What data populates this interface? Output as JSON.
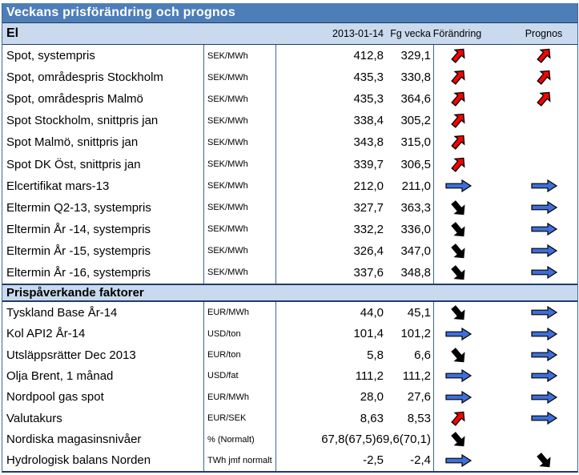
{
  "title": "Veckans prisförändring och prognos",
  "columns": {
    "date": "2013-01-14",
    "prev_week": "Fg vecka",
    "change": "Förändring",
    "forecast": "Prognos"
  },
  "icons": {
    "up": "red-diagonal-up-arrow",
    "down": "black-diagonal-down-arrow",
    "flat": "blue-right-arrow"
  },
  "colors": {
    "title_bar": "#4E7EB8",
    "section_band": "#C9DAEE",
    "divider": "#3A66A6",
    "border_dark": "#1F3C68",
    "arrow_up": "#FF0000",
    "arrow_down": "#000000",
    "arrow_flat": "#3E6FD8"
  },
  "sections": [
    {
      "label": "El",
      "rows": [
        {
          "name": "Spot, systempris",
          "unit": "SEK/MWh",
          "current": "412,8",
          "prev": "329,1",
          "change": "up",
          "forecast": "up"
        },
        {
          "name": "Spot, områdespris Stockholm",
          "unit": "SEK/MWh",
          "current": "435,3",
          "prev": "330,8",
          "change": "up",
          "forecast": "up"
        },
        {
          "name": "Spot, områdespris Malmö",
          "unit": "SEK/MWh",
          "current": "435,3",
          "prev": "364,6",
          "change": "up",
          "forecast": "up"
        },
        {
          "name": "Spot Stockholm, snittpris jan",
          "unit": "SEK/MWh",
          "current": "338,4",
          "prev": "305,2",
          "change": "up",
          "forecast": "none"
        },
        {
          "name": "Spot Malmö, snittpris jan",
          "unit": "SEK/MWh",
          "current": "343,8",
          "prev": "315,0",
          "change": "up",
          "forecast": "none"
        },
        {
          "name": "Spot DK Öst, snittpris jan",
          "unit": "SEK/MWh",
          "current": "339,7",
          "prev": "306,5",
          "change": "up",
          "forecast": "none"
        },
        {
          "name": "Elcertifikat mars-13",
          "unit": "SEK/MWh",
          "current": "212,0",
          "prev": "211,0",
          "change": "flat",
          "forecast": "flat"
        },
        {
          "name": "Eltermin Q2-13, systempris",
          "unit": "SEK/MWh",
          "current": "327,7",
          "prev": "363,3",
          "change": "down",
          "forecast": "flat"
        },
        {
          "name": "Eltermin År -14, systempris",
          "unit": "SEK/MWh",
          "current": "332,2",
          "prev": "336,0",
          "change": "down",
          "forecast": "flat"
        },
        {
          "name": "Eltermin År -15, systempris",
          "unit": "SEK/MWh",
          "current": "326,4",
          "prev": "347,0",
          "change": "down",
          "forecast": "flat"
        },
        {
          "name": "Eltermin År -16, systempris",
          "unit": "SEK/MWh",
          "current": "337,6",
          "prev": "348,8",
          "change": "down",
          "forecast": "flat"
        }
      ]
    },
    {
      "label": "Prispåverkande faktorer",
      "rows": [
        {
          "name": "Tyskland Base År-14",
          "unit": "EUR/MWh",
          "current": "44,0",
          "prev": "45,1",
          "change": "down",
          "forecast": "flat"
        },
        {
          "name": "Kol API2 År-14",
          "unit": "USD/ton",
          "current": "101,4",
          "prev": "101,2",
          "change": "flat",
          "forecast": "flat"
        },
        {
          "name": "Utsläppsrätter Dec 2013",
          "unit": "EUR/ton",
          "current": "5,8",
          "prev": "6,6",
          "change": "down",
          "forecast": "flat"
        },
        {
          "name": "Olja Brent, 1 månad",
          "unit": "USD/fat",
          "current": "111,2",
          "prev": "111,2",
          "change": "flat",
          "forecast": "flat"
        },
        {
          "name": "Nordpool gas spot",
          "unit": "EUR/MWh",
          "current": "28,0",
          "prev": "27,6",
          "change": "flat",
          "forecast": "flat"
        },
        {
          "name": "Valutakurs",
          "unit": "EUR/SEK",
          "current": "8,63",
          "prev": "8,53",
          "change": "up",
          "forecast": "flat"
        },
        {
          "name": "Nordiska magasinsnivåer",
          "unit": "% (Normalt)",
          "current": "67,8(67,5)",
          "prev": "69,6(70,1)",
          "change": "down",
          "forecast": "none"
        },
        {
          "name": "Hydrologisk balans Norden",
          "unit": "TWh jmf normalt",
          "current": "-2,5",
          "prev": "-2,4",
          "change": "flat",
          "forecast": "down"
        }
      ]
    }
  ]
}
